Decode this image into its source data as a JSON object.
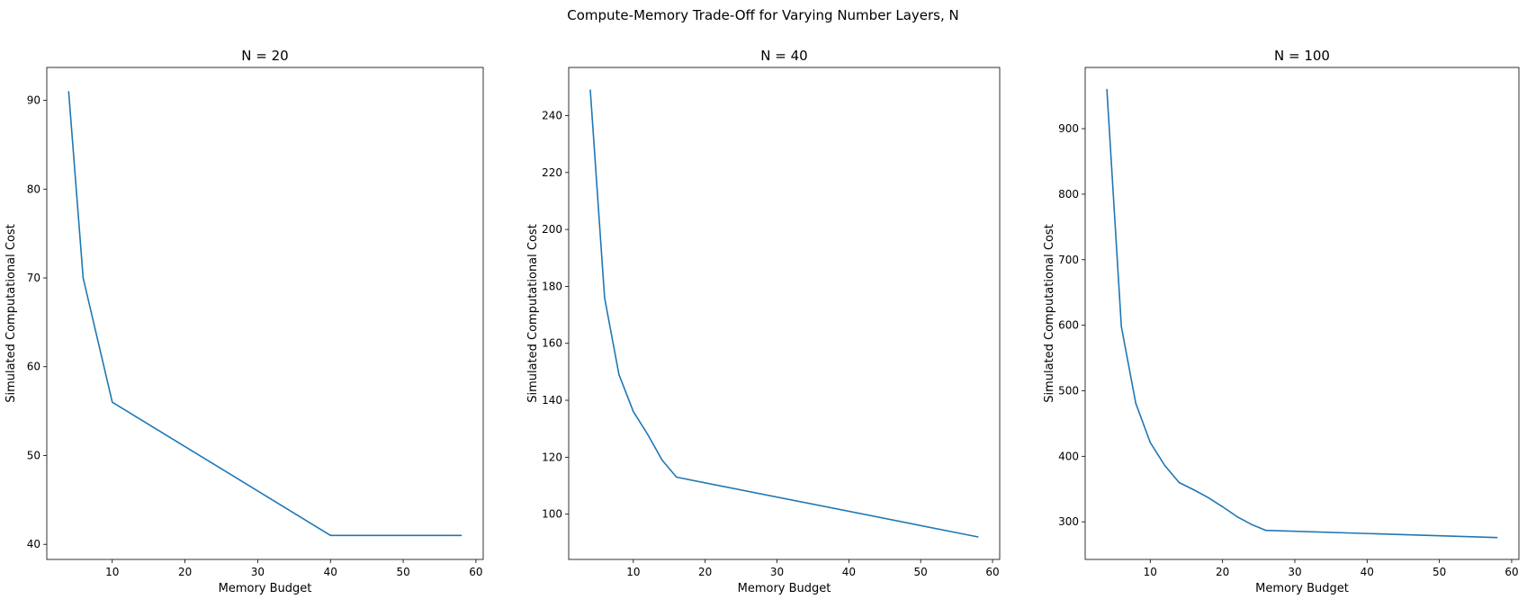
{
  "figure": {
    "suptitle": "Compute-Memory Trade-Off for Varying Number Layers, N"
  },
  "line_color": "#1f77b4",
  "chart_data": [
    {
      "type": "line",
      "title": "N = 20",
      "xlabel": "Memory Budget",
      "ylabel": "Simulated Computational Cost",
      "xlim": [
        1,
        61
      ],
      "ylim": [
        38.3,
        93.7
      ],
      "xticks": [
        10,
        20,
        30,
        40,
        50,
        60
      ],
      "yticks": [
        40,
        50,
        60,
        70,
        80,
        90
      ],
      "series": [
        {
          "x": [
            4,
            6,
            10,
            40,
            58
          ],
          "y": [
            91,
            70,
            56,
            41,
            41
          ]
        }
      ]
    },
    {
      "type": "line",
      "title": "N = 40",
      "xlabel": "Memory Budget",
      "ylabel": "Simulated Computational Cost",
      "xlim": [
        1,
        61
      ],
      "ylim": [
        84.1,
        256.9
      ],
      "xticks": [
        10,
        20,
        30,
        40,
        50,
        60
      ],
      "yticks": [
        100,
        120,
        140,
        160,
        180,
        200,
        220,
        240
      ],
      "series": [
        {
          "x": [
            4,
            6,
            8,
            10,
            12,
            14,
            16,
            58
          ],
          "y": [
            249,
            176,
            149,
            136,
            128,
            119,
            113,
            92
          ]
        }
      ]
    },
    {
      "type": "line",
      "title": "N = 100",
      "xlabel": "Memory Budget",
      "ylabel": "Simulated Computational Cost",
      "xlim": [
        1,
        61
      ],
      "ylim": [
        242.6,
        993.4
      ],
      "xticks": [
        10,
        20,
        30,
        40,
        50,
        60
      ],
      "yticks": [
        300,
        400,
        500,
        600,
        700,
        800,
        900
      ],
      "series": [
        {
          "x": [
            4,
            6,
            8,
            10,
            12,
            14,
            16,
            18,
            20,
            22,
            24,
            26,
            58
          ],
          "y": [
            960,
            598,
            481,
            421,
            386,
            360,
            349,
            337,
            323,
            308,
            296,
            287,
            276
          ]
        }
      ]
    }
  ]
}
